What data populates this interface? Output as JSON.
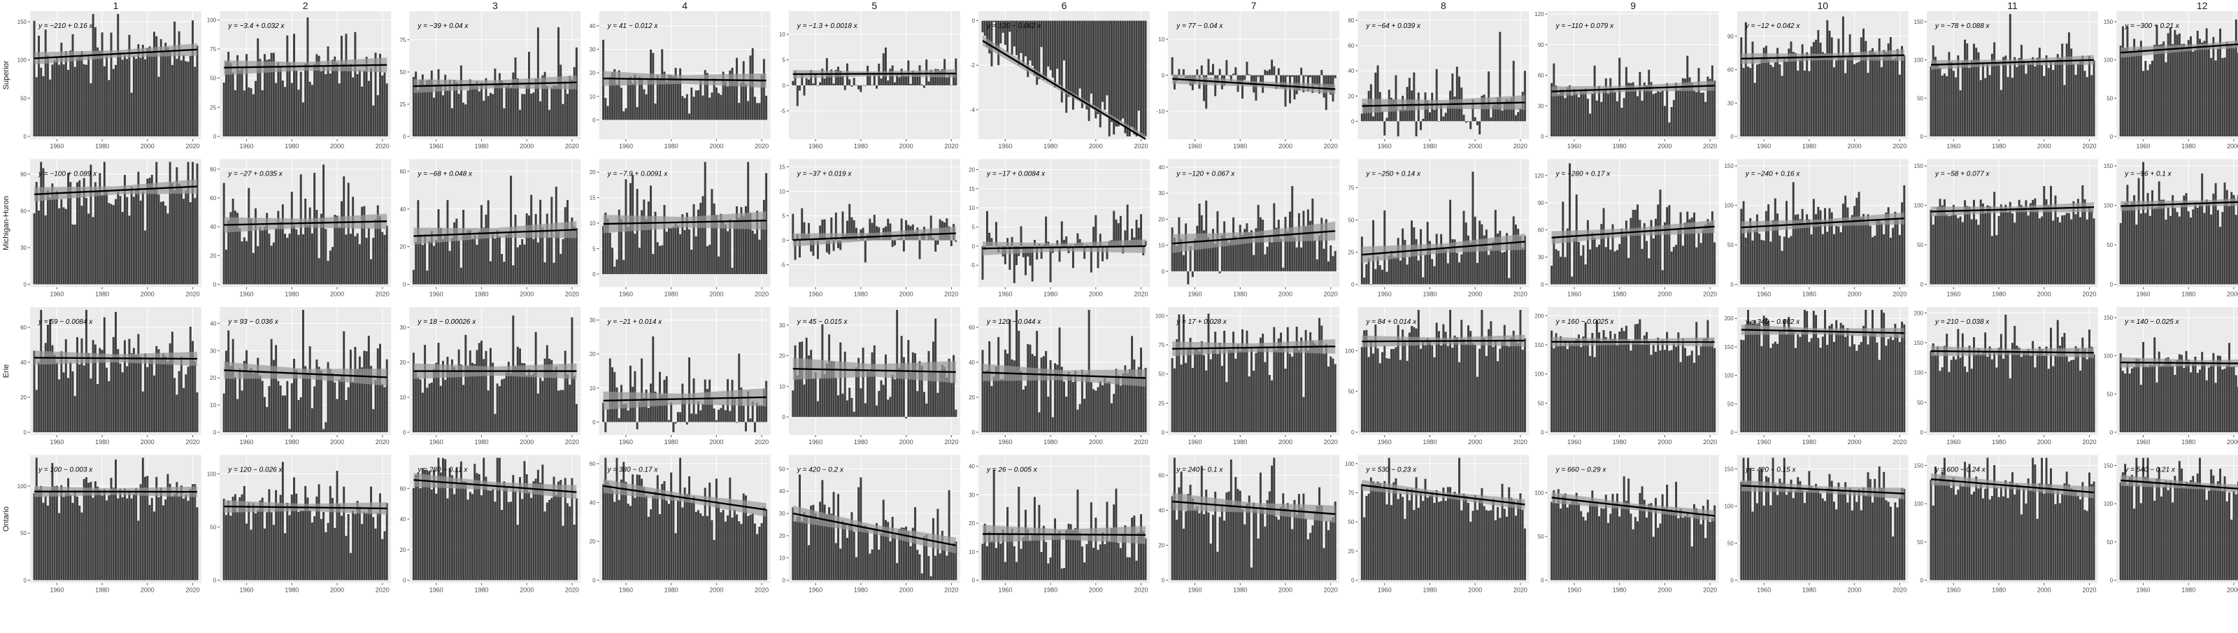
{
  "chart_data": {
    "type": "bar",
    "layout": "facet-grid",
    "columns": [
      "1",
      "2",
      "3",
      "4",
      "5",
      "6",
      "7",
      "8",
      "9",
      "10",
      "11",
      "12"
    ],
    "rows": [
      "Superior",
      "Michigan-Huron",
      "Erie",
      "Ontario"
    ],
    "x_range": [
      1950,
      2022
    ],
    "x_ticks": [
      1960,
      1980,
      2000,
      2020
    ],
    "trend_line": true,
    "confidence_band": true,
    "grid": true,
    "colors": {
      "bar": "#3f3f3f",
      "panel_bg": "#ebebeb",
      "grid": "#ffffff",
      "band": "#9a9a9a",
      "line": "#000000",
      "strip_text": "#1a1a1a",
      "tick_text": "#4d4d4d"
    },
    "panels": [
      [
        {
          "equation": "y = −210 + 0.16 x",
          "ylim": [
            0,
            160
          ],
          "yticks": [
            0,
            50,
            100,
            150
          ],
          "intercept": -210,
          "slope": 0.16,
          "sd": 18
        },
        {
          "equation": "y = −3.4 + 0.032 x",
          "ylim": [
            0,
            105
          ],
          "yticks": [
            0,
            25,
            50,
            75,
            100
          ],
          "intercept": -3.4,
          "slope": 0.032,
          "sd": 14
        },
        {
          "equation": "y = −39 + 0.04 x",
          "ylim": [
            0,
            95
          ],
          "yticks": [
            0,
            25,
            50,
            75
          ],
          "intercept": -39,
          "slope": 0.04,
          "sd": 12
        },
        {
          "equation": "y = 41 − 0.012 x",
          "ylim": [
            -7,
            45
          ],
          "yticks": [
            0,
            10,
            20,
            30,
            40
          ],
          "intercept": 41,
          "slope": -0.012,
          "sd": 7
        },
        {
          "equation": "y = −1.3 + 0.0018 x",
          "ylim": [
            -10,
            14
          ],
          "yticks": [
            -5,
            0,
            5,
            10
          ],
          "intercept": -1.3,
          "slope": 0.0018,
          "sd": 1.8
        },
        {
          "equation": "y = 120 − 0.062 x",
          "ylim": [
            -5.2,
            0.3
          ],
          "yticks": [
            -4,
            -2,
            0
          ],
          "intercept": 120,
          "slope": -0.062,
          "sd": 0.5
        },
        {
          "equation": "y = 77 − 0.04 x",
          "ylim": [
            -17,
            17
          ],
          "yticks": [
            -10,
            0,
            10
          ],
          "intercept": 77,
          "slope": -0.04,
          "sd": 3
        },
        {
          "equation": "y = −64 + 0.039 x",
          "ylim": [
            -12,
            85
          ],
          "yticks": [
            0,
            20,
            40,
            60,
            80
          ],
          "intercept": -64,
          "slope": 0.039,
          "sd": 13
        },
        {
          "equation": "y = −110 + 0.079 x",
          "ylim": [
            0,
            120
          ],
          "yticks": [
            0,
            30,
            60,
            90,
            120
          ],
          "intercept": -110,
          "slope": 0.079,
          "sd": 11
        },
        {
          "equation": "y = −12 + 0.042 x",
          "ylim": [
            0,
            110
          ],
          "yticks": [
            0,
            30,
            60,
            90
          ],
          "intercept": -12,
          "slope": 0.042,
          "sd": 11
        },
        {
          "equation": "y = −78 + 0.088 x",
          "ylim": [
            0,
            160
          ],
          "yticks": [
            0,
            50,
            100,
            150
          ],
          "intercept": -78,
          "slope": 0.088,
          "sd": 14
        },
        {
          "equation": "y = −300 + 0.21 x",
          "ylim": [
            0,
            160
          ],
          "yticks": [
            0,
            50,
            100,
            150
          ],
          "intercept": -300,
          "slope": 0.21,
          "sd": 15
        }
      ],
      [
        {
          "equation": "y = −100 + 0.089 x",
          "ylim": [
            0,
            100
          ],
          "yticks": [
            0,
            30,
            60,
            90
          ],
          "intercept": -100,
          "slope": 0.089,
          "sd": 13
        },
        {
          "equation": "y = −27 + 0.035 x",
          "ylim": [
            0,
            85
          ],
          "yticks": [
            0,
            20,
            40,
            60,
            80
          ],
          "intercept": -27,
          "slope": 0.035,
          "sd": 12
        },
        {
          "equation": "y = −68 + 0.048 x",
          "ylim": [
            0,
            65
          ],
          "yticks": [
            0,
            20,
            40,
            60
          ],
          "intercept": -68,
          "slope": 0.048,
          "sd": 10
        },
        {
          "equation": "y = −7.9 + 0.0091 x",
          "ylim": [
            -2,
            22
          ],
          "yticks": [
            0,
            5,
            10,
            15,
            20
          ],
          "intercept": -7.9,
          "slope": 0.0091,
          "sd": 4
        },
        {
          "equation": "y = −37 + 0.019 x",
          "ylim": [
            -9,
            16
          ],
          "yticks": [
            -5,
            0,
            5,
            10,
            15
          ],
          "intercept": -37,
          "slope": 0.019,
          "sd": 3
        },
        {
          "equation": "y = −17 + 0.0084 x",
          "ylim": [
            -10,
            22
          ],
          "yticks": [
            -5,
            0,
            5,
            10,
            15,
            20
          ],
          "intercept": -17,
          "slope": 0.0084,
          "sd": 4
        },
        {
          "equation": "y = −120 + 0.067 x",
          "ylim": [
            -5,
            42
          ],
          "yticks": [
            0,
            10,
            20,
            30,
            40
          ],
          "intercept": -120,
          "slope": 0.067,
          "sd": 8
        },
        {
          "equation": "y = −250 + 0.14 x",
          "ylim": [
            0,
            95
          ],
          "yticks": [
            0,
            25,
            50,
            75
          ],
          "intercept": -250,
          "slope": 0.14,
          "sd": 14
        },
        {
          "equation": "y = −280 + 0.17 x",
          "ylim": [
            0,
            135
          ],
          "yticks": [
            0,
            30,
            60,
            90,
            120
          ],
          "intercept": -280,
          "slope": 0.17,
          "sd": 16
        },
        {
          "equation": "y = −240 + 0.16 x",
          "ylim": [
            0,
            155
          ],
          "yticks": [
            0,
            50,
            100,
            150
          ],
          "intercept": -240,
          "slope": 0.16,
          "sd": 17
        },
        {
          "equation": "y = −58 + 0.077 x",
          "ylim": [
            0,
            155
          ],
          "yticks": [
            0,
            50,
            100,
            150
          ],
          "intercept": -58,
          "slope": 0.077,
          "sd": 14
        },
        {
          "equation": "y = −96 + 0.1 x",
          "ylim": [
            0,
            155
          ],
          "yticks": [
            0,
            50,
            100,
            150
          ],
          "intercept": -96,
          "slope": 0.1,
          "sd": 14
        }
      ],
      [
        {
          "equation": "y = 59 − 0.0084 x",
          "ylim": [
            0,
            70
          ],
          "yticks": [
            0,
            20,
            40,
            60
          ],
          "intercept": 59,
          "slope": -0.0084,
          "sd": 9
        },
        {
          "equation": "y = 93 − 0.036 x",
          "ylim": [
            0,
            45
          ],
          "yticks": [
            0,
            10,
            20,
            30,
            40
          ],
          "intercept": 93,
          "slope": -0.036,
          "sd": 7
        },
        {
          "equation": "y = 18 − 0.00026 x",
          "ylim": [
            0,
            35
          ],
          "yticks": [
            0,
            10,
            20,
            30
          ],
          "intercept": 18,
          "slope": -0.00026,
          "sd": 5
        },
        {
          "equation": "y = −21 + 0.014 x",
          "ylim": [
            -3,
            33
          ],
          "yticks": [
            0,
            10,
            20,
            30
          ],
          "intercept": -21,
          "slope": 0.014,
          "sd": 6
        },
        {
          "equation": "y = 45 − 0.015 x",
          "ylim": [
            -5,
            35
          ],
          "yticks": [
            0,
            10,
            20,
            30
          ],
          "intercept": 45,
          "slope": -0.015,
          "sd": 8
        },
        {
          "equation": "y = 120 − 0.044 x",
          "ylim": [
            0,
            70
          ],
          "yticks": [
            0,
            20,
            40,
            60
          ],
          "intercept": 120,
          "slope": -0.044,
          "sd": 11
        },
        {
          "equation": "y = 17 + 0.028 x",
          "ylim": [
            0,
            105
          ],
          "yticks": [
            0,
            25,
            50,
            75,
            100
          ],
          "intercept": 17,
          "slope": 0.028,
          "sd": 14
        },
        {
          "equation": "y = 84 + 0.014 x",
          "ylim": [
            0,
            150
          ],
          "yticks": [
            0,
            50,
            100
          ],
          "intercept": 84,
          "slope": 0.014,
          "sd": 16
        },
        {
          "equation": "y = 160 − 0.0025 x",
          "ylim": [
            0,
            210
          ],
          "yticks": [
            0,
            50,
            100,
            150,
            200
          ],
          "intercept": 160,
          "slope": -0.0025,
          "sd": 18
        },
        {
          "equation": "y = 340 − 0.082 x",
          "ylim": [
            0,
            215
          ],
          "yticks": [
            0,
            50,
            100,
            150,
            200
          ],
          "intercept": 340,
          "slope": -0.082,
          "sd": 20
        },
        {
          "equation": "y = 210 − 0.038 x",
          "ylim": [
            0,
            205
          ],
          "yticks": [
            0,
            50,
            100,
            150,
            200
          ],
          "intercept": 210,
          "slope": -0.038,
          "sd": 19
        },
        {
          "equation": "y = 140 − 0.025 x",
          "ylim": [
            0,
            160
          ],
          "yticks": [
            0,
            50,
            100,
            150
          ],
          "intercept": 140,
          "slope": -0.025,
          "sd": 15
        }
      ],
      [
        {
          "equation": "y = 100 − 0.003 x",
          "ylim": [
            0,
            130
          ],
          "yticks": [
            0,
            50,
            100
          ],
          "intercept": 100,
          "slope": -0.003,
          "sd": 13
        },
        {
          "equation": "y = 120 − 0.026 x",
          "ylim": [
            0,
            115
          ],
          "yticks": [
            0,
            50,
            100
          ],
          "intercept": 120,
          "slope": -0.026,
          "sd": 13
        },
        {
          "equation": "y = 280 − 0.11 x",
          "ylim": [
            0,
            80
          ],
          "yticks": [
            0,
            20,
            40,
            60
          ],
          "intercept": 280,
          "slope": -0.11,
          "sd": 10
        },
        {
          "equation": "y = 380 − 0.17 x",
          "ylim": [
            0,
            63
          ],
          "yticks": [
            0,
            20,
            40,
            60
          ],
          "intercept": 380,
          "slope": -0.17,
          "sd": 8
        },
        {
          "equation": "y = 420 − 0.2 x",
          "ylim": [
            0,
            55
          ],
          "yticks": [
            0,
            10,
            20,
            30,
            40,
            50
          ],
          "intercept": 420,
          "slope": -0.2,
          "sd": 8
        },
        {
          "equation": "y = 26 − 0.005 x",
          "ylim": [
            0,
            43
          ],
          "yticks": [
            0,
            10,
            20,
            30,
            40
          ],
          "intercept": 26,
          "slope": -0.005,
          "sd": 7
        },
        {
          "equation": "y = 240 − 0.1 x",
          "ylim": [
            0,
            70
          ],
          "yticks": [
            0,
            20,
            40,
            60
          ],
          "intercept": 240,
          "slope": -0.1,
          "sd": 11
        },
        {
          "equation": "y = 530 − 0.23 x",
          "ylim": [
            0,
            105
          ],
          "yticks": [
            0,
            25,
            50,
            75,
            100
          ],
          "intercept": 530,
          "slope": -0.23,
          "sd": 10
        },
        {
          "equation": "y = 660 − 0.29 x",
          "ylim": [
            0,
            140
          ],
          "yticks": [
            0,
            50,
            100
          ],
          "intercept": 660,
          "slope": -0.29,
          "sd": 14
        },
        {
          "equation": "y = 420 − 0.15 x",
          "ylim": [
            0,
            165
          ],
          "yticks": [
            0,
            50,
            100,
            150
          ],
          "intercept": 420,
          "slope": -0.15,
          "sd": 17
        },
        {
          "equation": "y = 600 − 0.24 x",
          "ylim": [
            0,
            160
          ],
          "yticks": [
            0,
            50,
            100,
            150
          ],
          "intercept": 600,
          "slope": -0.24,
          "sd": 17
        },
        {
          "equation": "y = 540 − 0.21 x",
          "ylim": [
            0,
            160
          ],
          "yticks": [
            0,
            50,
            100,
            150
          ],
          "intercept": 540,
          "slope": -0.21,
          "sd": 16
        }
      ]
    ]
  }
}
